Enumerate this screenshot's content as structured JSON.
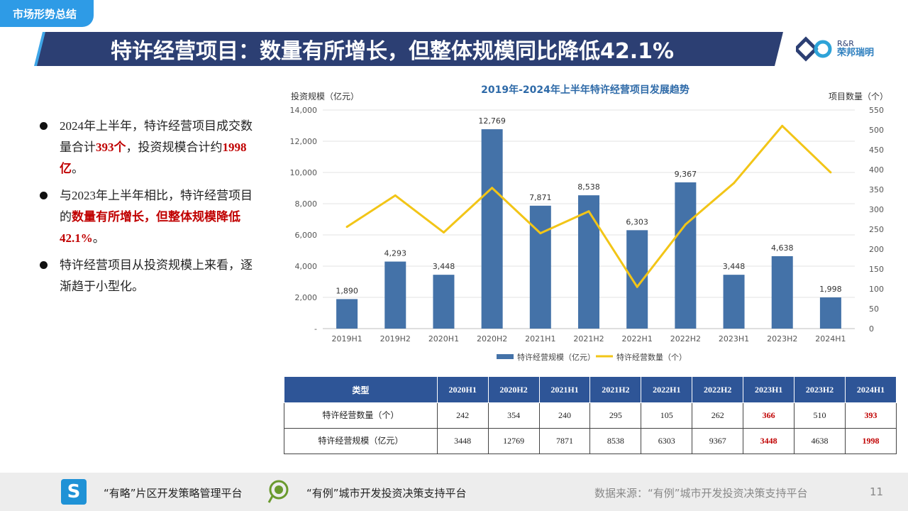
{
  "header": {
    "section_tab": "市场形势总结",
    "title": "特许经营项目：数量有所增长，但整体规模同比降低42.1%",
    "logo_en": "R&R",
    "logo_cn": "荣邦瑞明"
  },
  "bullets": [
    {
      "text_1": "2024年上半年，特许经营项目成交数量合计",
      "highlight_1": "393个",
      "text_2": "，投资规模合计约",
      "highlight_2": "1998亿",
      "text_3": "。"
    },
    {
      "text_1": "与2023年上半年相比，特许经营项目的",
      "highlight_1": "数量有所增长，但整体规模降低42.1%",
      "text_2": "。"
    },
    {
      "text_1": "特许经营项目从投资规模上来看，逐渐趋于小型化。"
    }
  ],
  "chart_data": {
    "type": "bar",
    "title": "2019年-2024年上半年特许经营项目发展趋势",
    "ylabel_left": "投资规模（亿元）",
    "ylabel_right": "项目数量（个）",
    "categories": [
      "2019H1",
      "2019H2",
      "2020H1",
      "2020H2",
      "2021H1",
      "2021H2",
      "2022H1",
      "2022H2",
      "2023H1",
      "2023H2",
      "2024H1"
    ],
    "y_left_ticks": [
      "-",
      "2,000",
      "4,000",
      "6,000",
      "8,000",
      "10,000",
      "12,000",
      "14,000"
    ],
    "y_right_ticks": [
      "0",
      "50",
      "100",
      "150",
      "200",
      "250",
      "300",
      "350",
      "400",
      "450",
      "500",
      "550"
    ],
    "ylim_left": [
      0,
      14000
    ],
    "ylim_right": [
      0,
      550
    ],
    "series": [
      {
        "name": "特许经营规模（亿元）",
        "type": "bar",
        "axis": "left",
        "color": "#4472a8",
        "values": [
          1890,
          4293,
          3448,
          12769,
          7871,
          8538,
          6303,
          9367,
          3448,
          4638,
          1998
        ],
        "labels": [
          "1,890",
          "4,293",
          "3,448",
          "12,769",
          "7,871",
          "8,538",
          "6,303",
          "9,367",
          "3,448",
          "4,638",
          "1,998"
        ]
      },
      {
        "name": "特许经营数量（个）",
        "type": "line",
        "axis": "right",
        "color": "#f2c517",
        "values": [
          256,
          335,
          242,
          354,
          240,
          295,
          105,
          262,
          366,
          510,
          393
        ]
      }
    ],
    "legend_position": "bottom",
    "grid": true
  },
  "table": {
    "headers": [
      "类型",
      "2020H1",
      "2020H2",
      "2021H1",
      "2021H2",
      "2022H1",
      "2022H2",
      "2023H1",
      "2023H2",
      "2024H1"
    ],
    "rows": [
      {
        "label": "特许经营数量（个）",
        "values": [
          "242",
          "354",
          "240",
          "295",
          "105",
          "262",
          "366",
          "510",
          "393"
        ]
      },
      {
        "label": "特许经营规模（亿元）",
        "values": [
          "3448",
          "12769",
          "7871",
          "8538",
          "6303",
          "9367",
          "3448",
          "4638",
          "1998"
        ]
      }
    ]
  },
  "footer": {
    "platform_1": "“有略”片区开发策略管理平台",
    "platform_2": "“有例”城市开发投资决策支持平台",
    "source": "数据来源：“有例”城市开发投资决策支持平台",
    "page": "11"
  },
  "colors": {
    "title_bar": "#2c3f73",
    "accent": "#2e9be6",
    "bar": "#4472a8",
    "line": "#f2c517",
    "highlight": "#c00000",
    "table_header": "#2e5597"
  }
}
